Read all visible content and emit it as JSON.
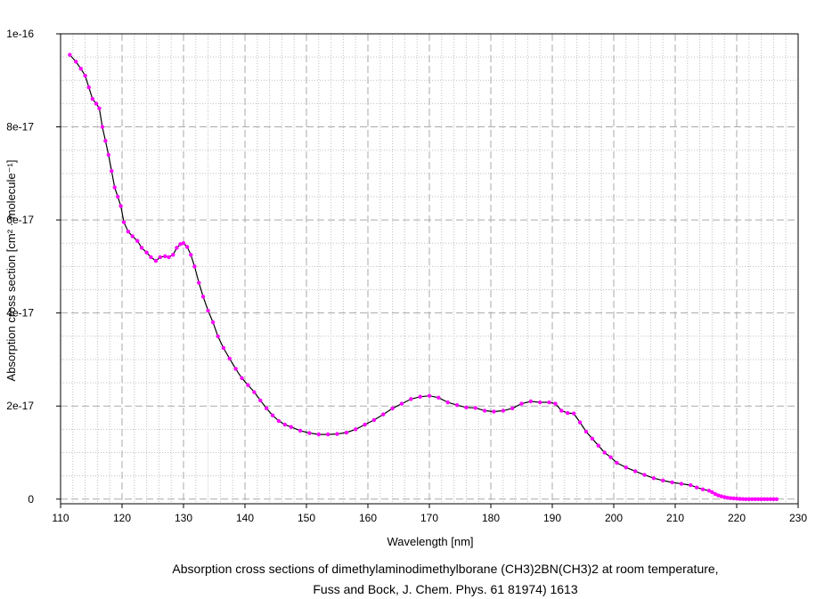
{
  "chart_data": {
    "type": "line",
    "xlabel": "Wavelength [nm]",
    "ylabel": "Absorption cross section [cm² · molecule⁻¹]",
    "xlim": [
      110,
      230
    ],
    "ylim": [
      -1e-18,
      1e-16
    ],
    "x_ticks": [
      110,
      120,
      130,
      140,
      150,
      160,
      170,
      180,
      190,
      200,
      210,
      220,
      230
    ],
    "y_ticks": [
      0,
      2e-17,
      4e-17,
      6e-17,
      8e-17,
      1e-16
    ],
    "x_tick_labels": [
      "110",
      "120",
      "130",
      "140",
      "150",
      "160",
      "170",
      "180",
      "190",
      "200",
      "210",
      "220",
      "230"
    ],
    "y_tick_labels": [
      "0",
      "2e-17",
      "4e-17",
      "6e-17",
      "8e-17",
      "1e-16"
    ],
    "grid": true,
    "line_color": "#000000",
    "marker_color": "#ff00ff",
    "caption_line1": "Absorption cross sections of dimethylaminodimethylborane (CH3)2BN(CH3)2 at room temperature,",
    "caption_line2": "Fuss and Bock, J. Chem. Phys. 61 81974) 1613",
    "series": [
      {
        "x": [
          111.5,
          112.5,
          113.3,
          114,
          114.6,
          115.2,
          115.8,
          116.3,
          116.8,
          117.3,
          117.8,
          118.3,
          118.8,
          119.3,
          119.8,
          120.3,
          121,
          121.7,
          122.5,
          123.2,
          124,
          124.7,
          125.5,
          126.2,
          127,
          127.6,
          128.3,
          128.9,
          129.5,
          130,
          130.6,
          131.2,
          131.8,
          132.5,
          133.2,
          134,
          134.8,
          135.6,
          136.5,
          137.5,
          138.5,
          139.5,
          140.5,
          141.5,
          142.5,
          143.5,
          144.5,
          145.5,
          146.5,
          147.5,
          149,
          150.5,
          152,
          153.5,
          155,
          156.5,
          158,
          159.5,
          161,
          162.5,
          164,
          165.5,
          167,
          168.5,
          170,
          171.5,
          173,
          174.5,
          176,
          177.5,
          179,
          180.5,
          182,
          183.5,
          185,
          186.5,
          188,
          189.5,
          190.5,
          191.5,
          192.5,
          193.5,
          194.5,
          195.5,
          196.5,
          197.5,
          198.5,
          199.5,
          200.5,
          202,
          203.5,
          205,
          206.5,
          208,
          209.5,
          211,
          212.5,
          213.5,
          214.5,
          215.5,
          216,
          216.5,
          217,
          217.5,
          218,
          218.5,
          219,
          219.5,
          220,
          220.5,
          221,
          221.5,
          222,
          222.5,
          223,
          223.5,
          224,
          224.5,
          225,
          225.5,
          226,
          226.5
        ],
        "y": [
          9.55e-17,
          9.4e-17,
          9.25e-17,
          9.1e-17,
          8.85e-17,
          8.6e-17,
          8.5e-17,
          8.4e-17,
          8e-17,
          7.7e-17,
          7.4e-17,
          7.05e-17,
          6.7e-17,
          6.5e-17,
          6.3e-17,
          5.95e-17,
          5.75e-17,
          5.65e-17,
          5.55e-17,
          5.4e-17,
          5.3e-17,
          5.2e-17,
          5.12e-17,
          5.2e-17,
          5.22e-17,
          5.2e-17,
          5.25e-17,
          5.4e-17,
          5.48e-17,
          5.5e-17,
          5.42e-17,
          5.25e-17,
          5e-17,
          4.65e-17,
          4.35e-17,
          4.05e-17,
          3.8e-17,
          3.5e-17,
          3.25e-17,
          3.02e-17,
          2.8e-17,
          2.6e-17,
          2.45e-17,
          2.3e-17,
          2.12e-17,
          1.95e-17,
          1.8e-17,
          1.68e-17,
          1.6e-17,
          1.55e-17,
          1.47e-17,
          1.42e-17,
          1.39e-17,
          1.39e-17,
          1.4e-17,
          1.43e-17,
          1.5e-17,
          1.6e-17,
          1.7e-17,
          1.82e-17,
          1.95e-17,
          2.05e-17,
          2.15e-17,
          2.2e-17,
          2.22e-17,
          2.18e-17,
          2.08e-17,
          2.02e-17,
          1.97e-17,
          1.96e-17,
          1.9e-17,
          1.88e-17,
          1.9e-17,
          1.95e-17,
          2.05e-17,
          2.1e-17,
          2.08e-17,
          2.08e-17,
          2.05e-17,
          1.9e-17,
          1.85e-17,
          1.84e-17,
          1.65e-17,
          1.45e-17,
          1.3e-17,
          1.15e-17,
          1e-17,
          9e-18,
          7.8e-18,
          6.8e-18,
          6e-18,
          5.2e-18,
          4.5e-18,
          4e-18,
          3.6e-18,
          3.3e-18,
          3e-18,
          2.5e-18,
          2.1e-18,
          1.8e-18,
          1.5e-18,
          1.1e-18,
          8e-19,
          6e-19,
          4.5e-19,
          3e-19,
          2e-19,
          1.5e-19,
          1e-19,
          5e-20,
          2e-20,
          0,
          0,
          0,
          0,
          0,
          0,
          0,
          0,
          0,
          0,
          0
        ]
      }
    ]
  }
}
